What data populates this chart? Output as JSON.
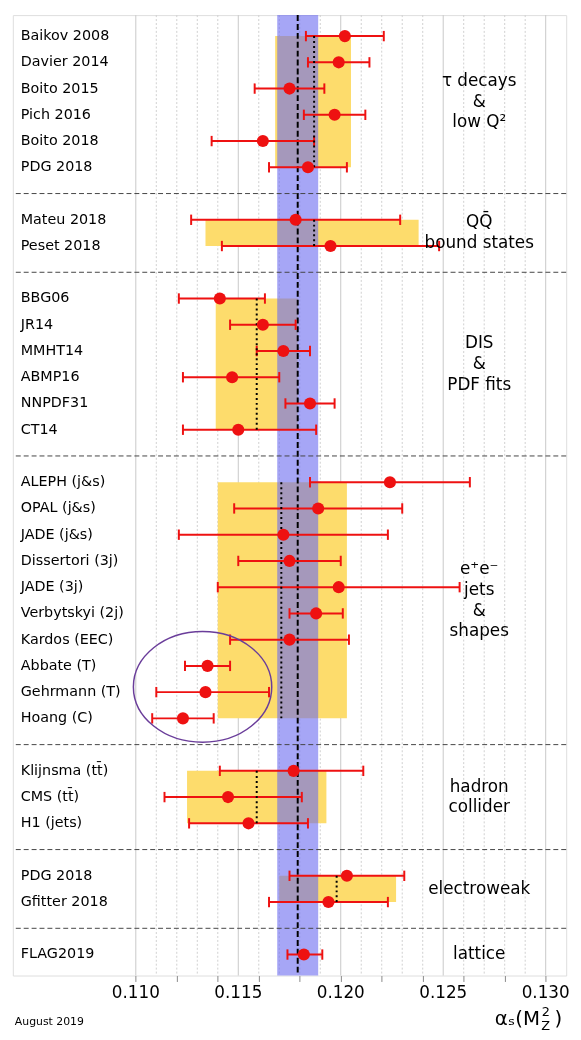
{
  "chart_data": {
    "type": "scatter",
    "orientation": "horizontal",
    "categories": [
      "Baikov 2008",
      "Davier 2014",
      "Boito 2015",
      "Pich 2016",
      "Boito 2018",
      "PDG 2018",
      "Mateu 2018",
      "Peset 2018",
      "BBG06",
      "JR14",
      "MMHT14",
      "ABMP16",
      "NNPDF31",
      "CT14",
      "ALEPH (j&s)",
      "OPAL (j&s)",
      "JADE (j&s)",
      "Dissertori (3j)",
      "JADE (3j)",
      "Verbytskyi (2j)",
      "Kardos (EEC)",
      "Abbate (T)",
      "Gehrmann (T)",
      "Hoang (C)",
      "Klijnsma (tt̄)",
      "CMS (tt̄)",
      "H1 (jets)",
      "PDG 2018",
      "Gfitter 2018",
      "FLAG2019"
    ],
    "series": [
      {
        "name": "τ decays\n&\nlow Q²",
        "color": "#ee1111",
        "values": [
          0.1202,
          0.1199,
          0.1175,
          0.1197,
          0.1162,
          0.1184,
          null,
          null,
          null,
          null,
          null,
          null,
          null,
          null,
          null,
          null,
          null,
          null,
          null,
          null,
          null,
          null,
          null,
          null,
          null,
          null,
          null,
          null,
          null,
          null
        ],
        "errors": [
          [
            0.1183,
            0.1221
          ],
          [
            0.1184,
            0.1214
          ],
          [
            0.1158,
            0.1192
          ],
          [
            0.1182,
            0.1212
          ],
          [
            0.1137,
            0.1187
          ],
          [
            0.1165,
            0.1203
          ],
          null,
          null,
          null,
          null,
          null,
          null,
          null,
          null,
          null,
          null,
          null,
          null,
          null,
          null,
          null,
          null,
          null,
          null,
          null,
          null,
          null,
          null,
          null,
          null
        ]
      },
      {
        "name": "QQ̄\nbound states",
        "color": "#ee1111",
        "values": [
          null,
          null,
          null,
          null,
          null,
          null,
          0.1178,
          0.1195,
          null,
          null,
          null,
          null,
          null,
          null,
          null,
          null,
          null,
          null,
          null,
          null,
          null,
          null,
          null,
          null,
          null,
          null,
          null,
          null,
          null,
          null
        ],
        "errors": [
          null,
          null,
          null,
          null,
          null,
          null,
          [
            0.1127,
            0.1229
          ],
          [
            0.1142,
            0.1248
          ],
          null,
          null,
          null,
          null,
          null,
          null,
          null,
          null,
          null,
          null,
          null,
          null,
          null,
          null,
          null,
          null,
          null,
          null,
          null,
          null,
          null,
          null
        ]
      },
      {
        "name": "DIS\n&\nPDF fits",
        "color": "#ee1111",
        "values": [
          null,
          null,
          null,
          null,
          null,
          null,
          null,
          null,
          0.1141,
          0.1162,
          0.1172,
          0.1147,
          0.1185,
          0.115,
          null,
          null,
          null,
          null,
          null,
          null,
          null,
          null,
          null,
          null,
          null,
          null,
          null,
          null,
          null,
          null
        ],
        "errors": [
          null,
          null,
          null,
          null,
          null,
          null,
          null,
          null,
          [
            0.1121,
            0.1163
          ],
          [
            0.1146,
            0.1178
          ],
          [
            0.1159,
            0.1185
          ],
          [
            0.1123,
            0.117
          ],
          [
            0.1173,
            0.1197
          ],
          [
            0.1123,
            0.1188
          ],
          null,
          null,
          null,
          null,
          null,
          null,
          null,
          null,
          null,
          null,
          null,
          null,
          null,
          null,
          null,
          null
        ]
      },
      {
        "name": "e⁺e⁻\njets\n&\nshapes",
        "color": "#ee1111",
        "values": [
          null,
          null,
          null,
          null,
          null,
          null,
          null,
          null,
          null,
          null,
          null,
          null,
          null,
          null,
          0.1224,
          0.1189,
          0.1172,
          0.1175,
          0.1199,
          0.1188,
          0.1175,
          0.1135,
          0.1134,
          0.1123,
          null,
          null,
          null,
          null,
          null,
          null
        ],
        "errors": [
          null,
          null,
          null,
          null,
          null,
          null,
          null,
          null,
          null,
          null,
          null,
          null,
          null,
          null,
          [
            0.1185,
            0.1263
          ],
          [
            0.1148,
            0.123
          ],
          [
            0.1121,
            0.1223
          ],
          [
            0.115,
            0.12
          ],
          [
            0.114,
            0.1258
          ],
          [
            0.1175,
            0.1201
          ],
          [
            0.1146,
            0.1204
          ],
          [
            0.1124,
            0.1146
          ],
          [
            0.111,
            0.1165
          ],
          [
            0.1108,
            0.1138
          ],
          null,
          null,
          null,
          null,
          null,
          null
        ]
      },
      {
        "name": "hadron\ncollider",
        "color": "#ee1111",
        "values": [
          null,
          null,
          null,
          null,
          null,
          null,
          null,
          null,
          null,
          null,
          null,
          null,
          null,
          null,
          null,
          null,
          null,
          null,
          null,
          null,
          null,
          null,
          null,
          null,
          0.1177,
          0.1145,
          0.1155,
          null,
          null,
          null
        ],
        "errors": [
          null,
          null,
          null,
          null,
          null,
          null,
          null,
          null,
          null,
          null,
          null,
          null,
          null,
          null,
          null,
          null,
          null,
          null,
          null,
          null,
          null,
          null,
          null,
          null,
          [
            0.1141,
            0.1211
          ],
          [
            0.1114,
            0.1181
          ],
          [
            0.1126,
            0.1184
          ],
          null,
          null,
          null
        ]
      },
      {
        "name": "electroweak",
        "color": "#ee1111",
        "values": [
          null,
          null,
          null,
          null,
          null,
          null,
          null,
          null,
          null,
          null,
          null,
          null,
          null,
          null,
          null,
          null,
          null,
          null,
          null,
          null,
          null,
          null,
          null,
          null,
          null,
          null,
          null,
          0.1203,
          0.1194,
          null
        ],
        "errors": [
          null,
          null,
          null,
          null,
          null,
          null,
          null,
          null,
          null,
          null,
          null,
          null,
          null,
          null,
          null,
          null,
          null,
          null,
          null,
          null,
          null,
          null,
          null,
          null,
          null,
          null,
          null,
          [
            0.1175,
            0.1231
          ],
          [
            0.1165,
            0.1223
          ],
          null
        ]
      },
      {
        "name": "lattice",
        "color": "#ee1111",
        "values": [
          null,
          null,
          null,
          null,
          null,
          null,
          null,
          null,
          null,
          null,
          null,
          null,
          null,
          null,
          null,
          null,
          null,
          null,
          null,
          null,
          null,
          null,
          null,
          null,
          null,
          null,
          null,
          null,
          null,
          0.1182
        ],
        "errors": [
          null,
          null,
          null,
          null,
          null,
          null,
          null,
          null,
          null,
          null,
          null,
          null,
          null,
          null,
          null,
          null,
          null,
          null,
          null,
          null,
          null,
          null,
          null,
          null,
          null,
          null,
          null,
          null,
          null,
          [
            0.1174,
            0.1191
          ]
        ]
      },
      {
        "type": "line",
        "color": "#000000",
        "line_style": "dotted",
        "marker": "none",
        "values": [
          0.1187,
          0.1187,
          0.1187,
          0.1187,
          0.1187,
          0.1187,
          null,
          null,
          null,
          null,
          null,
          null,
          null,
          null,
          null,
          null,
          null,
          null,
          null,
          null,
          null,
          null,
          null,
          null,
          null,
          null,
          null,
          null,
          null,
          null
        ],
        "lower": [
          0.1168,
          0.1168,
          0.1168,
          0.1168,
          0.1168,
          0.1168,
          null,
          null,
          null,
          null,
          null,
          null,
          null,
          null,
          null,
          null,
          null,
          null,
          null,
          null,
          null,
          null,
          null,
          null,
          null,
          null,
          null,
          null,
          null,
          null
        ],
        "upper": [
          0.1205,
          0.1205,
          0.1205,
          0.1205,
          0.1205,
          0.1205,
          null,
          null,
          null,
          null,
          null,
          null,
          null,
          null,
          null,
          null,
          null,
          null,
          null,
          null,
          null,
          null,
          null,
          null,
          null,
          null,
          null,
          null,
          null,
          null
        ]
      },
      {
        "type": "line",
        "color": "#000000",
        "line_style": "dotted",
        "marker": "none",
        "values": [
          null,
          null,
          null,
          null,
          null,
          null,
          0.1187,
          0.1187,
          null,
          null,
          null,
          null,
          null,
          null,
          null,
          null,
          null,
          null,
          null,
          null,
          null,
          null,
          null,
          null,
          null,
          null,
          null,
          null,
          null,
          null
        ],
        "lower": [
          null,
          null,
          null,
          null,
          null,
          null,
          0.1134,
          0.1134,
          null,
          null,
          null,
          null,
          null,
          null,
          null,
          null,
          null,
          null,
          null,
          null,
          null,
          null,
          null,
          null,
          null,
          null,
          null,
          null,
          null,
          null
        ],
        "upper": [
          null,
          null,
          null,
          null,
          null,
          null,
          0.1238,
          0.1238,
          null,
          null,
          null,
          null,
          null,
          null,
          null,
          null,
          null,
          null,
          null,
          null,
          null,
          null,
          null,
          null,
          null,
          null,
          null,
          null,
          null,
          null
        ]
      },
      {
        "type": "line",
        "color": "#000000",
        "line_style": "dotted",
        "marker": "none",
        "values": [
          null,
          null,
          null,
          null,
          null,
          null,
          null,
          null,
          0.1159,
          0.1159,
          0.1159,
          0.1159,
          0.1159,
          0.1159,
          null,
          null,
          null,
          null,
          null,
          null,
          null,
          null,
          null,
          null,
          null,
          null,
          null,
          null,
          null,
          null
        ],
        "lower": [
          null,
          null,
          null,
          null,
          null,
          null,
          null,
          null,
          0.1139,
          0.1139,
          0.1139,
          0.1139,
          0.1139,
          0.1139,
          null,
          null,
          null,
          null,
          null,
          null,
          null,
          null,
          null,
          null,
          null,
          null,
          null,
          null,
          null,
          null
        ],
        "upper": [
          null,
          null,
          null,
          null,
          null,
          null,
          null,
          null,
          0.1179,
          0.1179,
          0.1179,
          0.1179,
          0.1179,
          0.1179,
          null,
          null,
          null,
          null,
          null,
          null,
          null,
          null,
          null,
          null,
          null,
          null,
          null,
          null,
          null,
          null
        ]
      },
      {
        "type": "line",
        "color": "#000000",
        "line_style": "dotted",
        "marker": "none",
        "values": [
          null,
          null,
          null,
          null,
          null,
          null,
          null,
          null,
          null,
          null,
          null,
          null,
          null,
          null,
          0.1171,
          0.1171,
          0.1171,
          0.1171,
          0.1171,
          0.1171,
          0.1171,
          0.1171,
          0.1171,
          0.1171,
          null,
          null,
          null,
          null,
          null,
          null
        ],
        "lower": [
          null,
          null,
          null,
          null,
          null,
          null,
          null,
          null,
          null,
          null,
          null,
          null,
          null,
          null,
          0.114,
          0.114,
          0.114,
          0.114,
          0.114,
          0.114,
          0.114,
          0.114,
          0.114,
          0.114,
          null,
          null,
          null,
          null,
          null,
          null
        ],
        "upper": [
          null,
          null,
          null,
          null,
          null,
          null,
          null,
          null,
          null,
          null,
          null,
          null,
          null,
          null,
          0.1203,
          0.1203,
          0.1203,
          0.1203,
          0.1203,
          0.1203,
          0.1203,
          0.1203,
          0.1203,
          0.1203,
          null,
          null,
          null,
          null,
          null,
          null
        ]
      },
      {
        "type": "line",
        "color": "#000000",
        "line_style": "dotted",
        "marker": "none",
        "values": [
          null,
          null,
          null,
          null,
          null,
          null,
          null,
          null,
          null,
          null,
          null,
          null,
          null,
          null,
          null,
          null,
          null,
          null,
          null,
          null,
          null,
          null,
          null,
          null,
          0.1159,
          0.1159,
          0.1159,
          null,
          null,
          null
        ],
        "lower": [
          null,
          null,
          null,
          null,
          null,
          null,
          null,
          null,
          null,
          null,
          null,
          null,
          null,
          null,
          null,
          null,
          null,
          null,
          null,
          null,
          null,
          null,
          null,
          null,
          0.1125,
          0.1125,
          0.1125,
          null,
          null,
          null
        ],
        "upper": [
          null,
          null,
          null,
          null,
          null,
          null,
          null,
          null,
          null,
          null,
          null,
          null,
          null,
          null,
          null,
          null,
          null,
          null,
          null,
          null,
          null,
          null,
          null,
          null,
          0.1193,
          0.1193,
          0.1193,
          null,
          null,
          null
        ]
      },
      {
        "type": "line",
        "color": "#000000",
        "line_style": "dotted",
        "marker": "none",
        "values": [
          null,
          null,
          null,
          null,
          null,
          null,
          null,
          null,
          null,
          null,
          null,
          null,
          null,
          null,
          null,
          null,
          null,
          null,
          null,
          null,
          null,
          null,
          null,
          null,
          null,
          null,
          null,
          0.1198,
          0.1198,
          null
        ],
        "lower": [
          null,
          null,
          null,
          null,
          null,
          null,
          null,
          null,
          null,
          null,
          null,
          null,
          null,
          null,
          null,
          null,
          null,
          null,
          null,
          null,
          null,
          null,
          null,
          null,
          null,
          null,
          null,
          0.117,
          0.117,
          null
        ],
        "upper": [
          null,
          null,
          null,
          null,
          null,
          null,
          null,
          null,
          null,
          null,
          null,
          null,
          null,
          null,
          null,
          null,
          null,
          null,
          null,
          null,
          null,
          null,
          null,
          null,
          null,
          null,
          null,
          0.1227,
          0.1227,
          null
        ]
      }
    ],
    "xlim": [
      0.104,
      0.131
    ],
    "xticks": [
      {
        "value": 0.11,
        "label": "0.110"
      },
      {
        "value": 0.111,
        "label": null
      },
      {
        "value": 0.112,
        "label": null
      },
      {
        "value": 0.113,
        "label": null
      },
      {
        "value": 0.114,
        "label": null
      },
      {
        "value": 0.115,
        "label": "0.115"
      },
      {
        "value": 0.116,
        "label": null
      },
      {
        "value": 0.117,
        "label": null
      },
      {
        "value": 0.118,
        "label": null
      },
      {
        "value": 0.119,
        "label": null
      },
      {
        "value": 0.12,
        "label": "0.120"
      },
      {
        "value": 0.121,
        "label": null
      },
      {
        "value": 0.122,
        "label": null
      },
      {
        "value": 0.123,
        "label": null
      },
      {
        "value": 0.124,
        "label": null
      },
      {
        "value": 0.125,
        "label": "0.125"
      },
      {
        "value": 0.126,
        "label": null
      },
      {
        "value": 0.127,
        "label": null
      },
      {
        "value": 0.128,
        "label": null
      },
      {
        "value": 0.129,
        "label": null
      },
      {
        "value": 0.13,
        "label": "0.130"
      }
    ],
    "xlabel": "αₛ(M$_{Z}$$^{2}$)",
    "bands": [
      {
        "axis": "x",
        "from": 0.1169,
        "to": 0.1189,
        "color": "#6a6af0"
      }
    ],
    "ref_lines": [
      {
        "axis": "x",
        "value": 0.1179,
        "line_style": "dashed",
        "color": "#000000"
      }
    ],
    "annotations": [
      "August 2019"
    ],
    "marker": "circle",
    "grid": "x"
  }
}
